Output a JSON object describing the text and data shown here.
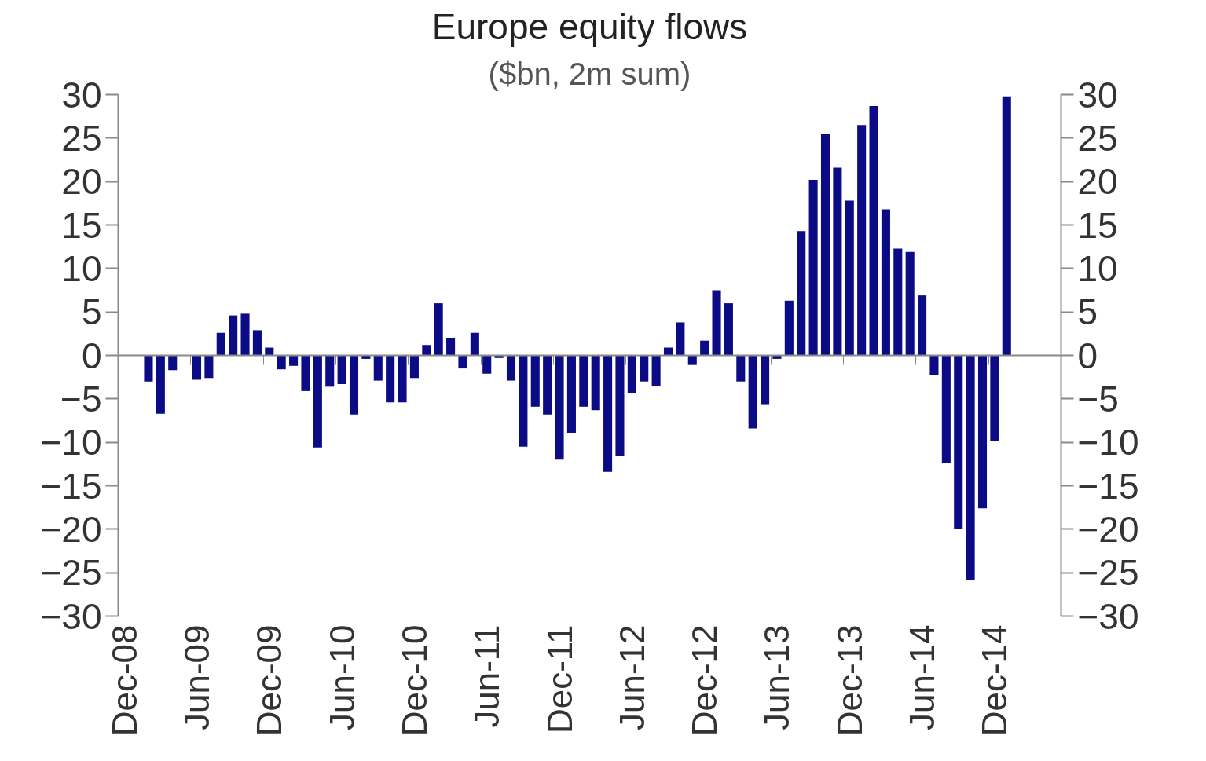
{
  "chart_data": {
    "type": "bar",
    "title": "Europe equity flows",
    "subtitle": "($bn, 2m sum)",
    "categories": [
      "Dec-08",
      null,
      null,
      null,
      null,
      null,
      "Jun-09",
      null,
      null,
      null,
      null,
      null,
      "Dec-09",
      null,
      null,
      null,
      null,
      null,
      "Jun-10",
      null,
      null,
      null,
      null,
      null,
      "Dec-10",
      null,
      null,
      null,
      null,
      null,
      "Jun-11",
      null,
      null,
      null,
      null,
      null,
      "Dec-11",
      null,
      null,
      null,
      null,
      null,
      "Jun-12",
      null,
      null,
      null,
      null,
      null,
      "Dec-12",
      null,
      null,
      null,
      null,
      null,
      "Jun-13",
      null,
      null,
      null,
      null,
      null,
      "Dec-13",
      null,
      null,
      null,
      null,
      null,
      "Jun-14",
      null,
      null,
      null,
      null,
      null,
      "Dec-14",
      null
    ],
    "values": [
      null,
      null,
      -3.0,
      -6.7,
      -1.7,
      null,
      -2.8,
      -2.6,
      2.6,
      4.6,
      4.8,
      2.9,
      0.9,
      -1.6,
      -1.2,
      -4.1,
      -10.6,
      -3.6,
      -3.3,
      -6.8,
      -0.4,
      -2.9,
      -5.4,
      -5.4,
      -2.6,
      1.2,
      6.0,
      2.0,
      -1.5,
      2.6,
      -2.1,
      -0.3,
      -2.9,
      -10.5,
      -5.9,
      -6.8,
      -12.0,
      -8.9,
      -5.9,
      -6.3,
      -13.4,
      -11.6,
      -4.3,
      -3.0,
      -3.5,
      0.9,
      3.8,
      -1.1,
      1.7,
      7.5,
      6.0,
      -3.0,
      -8.4,
      -5.7,
      -0.4,
      6.3,
      14.3,
      20.2,
      25.5,
      21.6,
      17.8,
      26.5,
      28.7,
      16.8,
      12.3,
      11.9,
      6.9,
      -2.3,
      -12.4,
      -20.0,
      -25.8,
      -17.6,
      -9.9,
      29.8
    ],
    "color": "#0b0b86",
    "ylim": [
      -30,
      30
    ],
    "yticks": [
      -30,
      -25,
      -20,
      -15,
      -10,
      -5,
      0,
      5,
      10,
      15,
      20,
      25,
      30
    ],
    "y2lim": [
      -30,
      30
    ],
    "y2ticks": [
      -30,
      -25,
      -20,
      -15,
      -10,
      -5,
      0,
      5,
      10,
      15,
      20,
      25,
      30
    ]
  }
}
